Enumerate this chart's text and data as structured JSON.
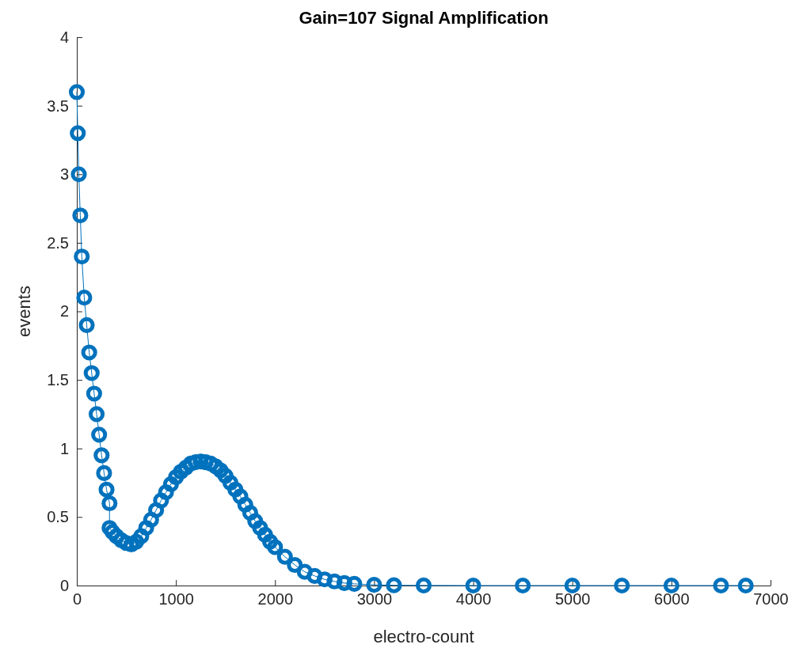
{
  "chart_data": {
    "type": "line",
    "title": "Gain=107 Signal Amplification",
    "xlabel": "electro-count",
    "ylabel": "events",
    "xlim": [
      0,
      7000
    ],
    "xticks": [
      0,
      1000,
      2000,
      3000,
      4000,
      5000,
      6000,
      7000
    ],
    "ylim": [
      0,
      4
    ],
    "yticks": [
      0,
      0.5,
      1,
      1.5,
      2,
      2.5,
      3,
      3.5,
      4
    ],
    "grid": false,
    "marker": "circle",
    "line_style": "solid",
    "series": [
      {
        "color": "#0072bd",
        "x": [
          0,
          10,
          20,
          35,
          50,
          75,
          100,
          125,
          150,
          175,
          200,
          225,
          250,
          275,
          300,
          330,
          330,
          360,
          400,
          450,
          500,
          550,
          600,
          650,
          700,
          750,
          800,
          850,
          900,
          950,
          1000,
          1050,
          1100,
          1150,
          1200,
          1250,
          1300,
          1350,
          1400,
          1450,
          1500,
          1550,
          1600,
          1650,
          1700,
          1750,
          1800,
          1850,
          1900,
          1950,
          2000,
          2100,
          2200,
          2300,
          2400,
          2500,
          2600,
          2700,
          2800,
          3000,
          3200,
          3500,
          4000,
          4500,
          5000,
          5500,
          6000,
          6500,
          6750
        ],
        "values": [
          3.6,
          3.3,
          3.0,
          2.7,
          2.4,
          2.1,
          1.9,
          1.7,
          1.55,
          1.4,
          1.25,
          1.1,
          0.95,
          0.82,
          0.7,
          0.6,
          0.42,
          0.39,
          0.36,
          0.33,
          0.31,
          0.3,
          0.32,
          0.36,
          0.42,
          0.48,
          0.55,
          0.62,
          0.68,
          0.74,
          0.79,
          0.83,
          0.86,
          0.89,
          0.9,
          0.905,
          0.9,
          0.89,
          0.87,
          0.84,
          0.8,
          0.75,
          0.7,
          0.65,
          0.59,
          0.53,
          0.47,
          0.42,
          0.37,
          0.32,
          0.28,
          0.21,
          0.15,
          0.1,
          0.07,
          0.045,
          0.03,
          0.018,
          0.012,
          0.005,
          0.002,
          0.001,
          0,
          0,
          0,
          0,
          0,
          0,
          0
        ]
      }
    ]
  }
}
